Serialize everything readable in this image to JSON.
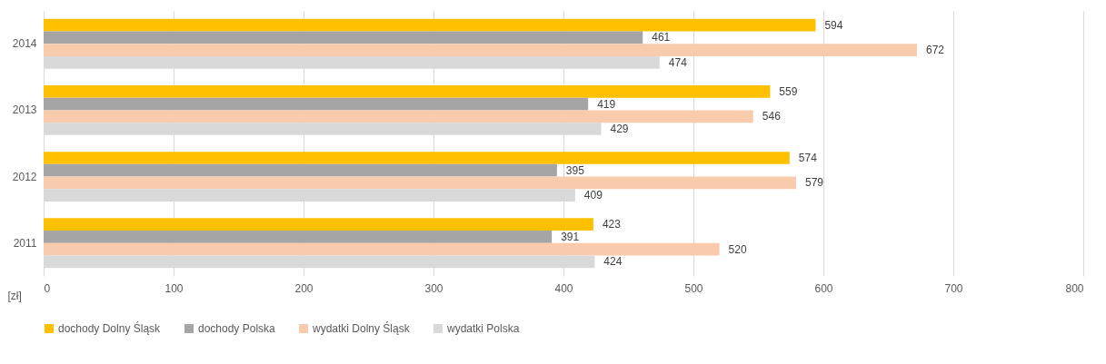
{
  "chart_data": {
    "type": "bar",
    "orientation": "horizontal",
    "xlabel": "[zł]",
    "categories": [
      "2014",
      "2013",
      "2012",
      "2011"
    ],
    "series": [
      {
        "name": "dochody Dolny Śląsk",
        "color": "#ffc000",
        "values": [
          594,
          559,
          574,
          423
        ]
      },
      {
        "name": "dochody Polska",
        "color": "#a5a5a5",
        "values": [
          461,
          419,
          395,
          391
        ]
      },
      {
        "name": "wydatki Dolny Śląsk",
        "color": "#f8cbad",
        "values": [
          672,
          546,
          579,
          520
        ]
      },
      {
        "name": "wydatki Polska",
        "color": "#d9d9d9",
        "values": [
          474,
          429,
          409,
          424
        ]
      }
    ],
    "xlim": [
      0,
      800
    ],
    "xticks": [
      0,
      100,
      200,
      300,
      400,
      500,
      600,
      700,
      800
    ],
    "grid": "x",
    "legend": "bottom",
    "data_labels": true
  }
}
